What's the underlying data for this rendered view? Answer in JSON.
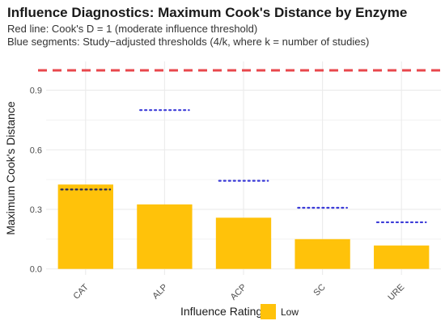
{
  "chart_data": {
    "type": "bar",
    "title": "Influence Diagnostics: Maximum Cook's Distance by Enzyme",
    "subtitle": [
      "Red line: Cook's D = 1 (moderate influence threshold)",
      "Blue segments: Study−adjusted thresholds (4/k, where k = number of studies)"
    ],
    "xlabel": "",
    "ylabel": "Maximum Cook's Distance",
    "categories": [
      "CAT",
      "ALP",
      "ACP",
      "SC",
      "URE"
    ],
    "values": [
      0.425,
      0.325,
      0.258,
      0.15,
      0.118
    ],
    "thresholds": [
      0.4,
      0.8,
      0.444,
      0.308,
      0.235
    ],
    "reference_line": 1.0,
    "ylim": [
      -0.03,
      1.045
    ],
    "yticks": [
      0.0,
      0.3,
      0.6,
      0.9
    ],
    "ytick_labels": [
      "0.0",
      "0.3",
      "0.6",
      "0.9"
    ],
    "grid": true,
    "legend": {
      "title": "Influence Rating",
      "entries": [
        {
          "label": "Low",
          "color": "#FFC20A"
        }
      ],
      "placement": "bottom"
    },
    "colors": {
      "bar": "#FFC20A",
      "reference_line": "#E8474C",
      "threshold": "#3B3BD8",
      "grid": "#EBEBEB"
    }
  }
}
